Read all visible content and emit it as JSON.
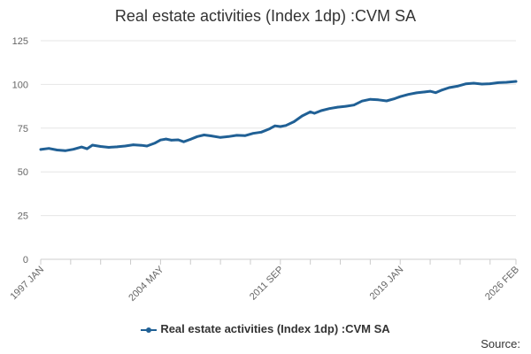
{
  "chart_data": {
    "type": "line",
    "title": "Real estate activities (Index 1dp) :CVM SA",
    "xlabel": "",
    "ylabel": "",
    "ylim": [
      0,
      125
    ],
    "yticks": [
      0,
      25,
      50,
      75,
      100,
      125
    ],
    "x_range": [
      "1997-01",
      "2026-02"
    ],
    "xtick_labels": [
      {
        "label": "1997 JAN",
        "date": "1997-01"
      },
      {
        "label": "2004 MAY",
        "date": "2004-05"
      },
      {
        "label": "2011 SEP",
        "date": "2011-09"
      },
      {
        "label": "2019 JAN",
        "date": "2019-01"
      },
      {
        "label": "2026 FEB",
        "date": "2026-02"
      }
    ],
    "minor_tick_dates": [
      "1997-01",
      "1998-11",
      "2000-09",
      "2002-07",
      "2004-05",
      "2006-03",
      "2008-01",
      "2009-11",
      "2011-09",
      "2013-07",
      "2015-05",
      "2017-03",
      "2019-01",
      "2020-11",
      "2022-09",
      "2024-07",
      "2026-02"
    ],
    "grid": true,
    "legend_position": "bottom",
    "color": "#206095",
    "series": [
      {
        "name": "Real estate activities (Index 1dp) :CVM SA",
        "points": [
          [
            "1997-01",
            62.8
          ],
          [
            "1997-07",
            63.4
          ],
          [
            "1998-01",
            62.5
          ],
          [
            "1998-07",
            62.1
          ],
          [
            "1999-01",
            62.9
          ],
          [
            "1999-07",
            64.2
          ],
          [
            "1999-11",
            63.2
          ],
          [
            "2000-03",
            65.3
          ],
          [
            "2000-09",
            64.5
          ],
          [
            "2001-03",
            64.0
          ],
          [
            "2001-09",
            64.3
          ],
          [
            "2002-03",
            64.8
          ],
          [
            "2002-09",
            65.5
          ],
          [
            "2003-03",
            65.2
          ],
          [
            "2003-07",
            64.8
          ],
          [
            "2004-01",
            66.5
          ],
          [
            "2004-05",
            68.2
          ],
          [
            "2004-09",
            68.8
          ],
          [
            "2005-01",
            68.1
          ],
          [
            "2005-06",
            68.3
          ],
          [
            "2005-10",
            67.2
          ],
          [
            "2006-03",
            68.6
          ],
          [
            "2006-08",
            70.2
          ],
          [
            "2007-01",
            71.1
          ],
          [
            "2007-06",
            70.6
          ],
          [
            "2008-01",
            69.7
          ],
          [
            "2008-07",
            70.2
          ],
          [
            "2009-01",
            70.9
          ],
          [
            "2009-07",
            70.7
          ],
          [
            "2010-01",
            72.0
          ],
          [
            "2010-07",
            72.7
          ],
          [
            "2011-01",
            74.6
          ],
          [
            "2011-05",
            76.3
          ],
          [
            "2011-09",
            75.9
          ],
          [
            "2012-01",
            76.5
          ],
          [
            "2012-07",
            78.7
          ],
          [
            "2013-01",
            82.0
          ],
          [
            "2013-07",
            84.3
          ],
          [
            "2013-10",
            83.5
          ],
          [
            "2014-03",
            85.0
          ],
          [
            "2014-09",
            86.2
          ],
          [
            "2015-03",
            87.0
          ],
          [
            "2015-09",
            87.5
          ],
          [
            "2016-03",
            88.2
          ],
          [
            "2016-09",
            90.5
          ],
          [
            "2017-03",
            91.5
          ],
          [
            "2017-09",
            91.2
          ],
          [
            "2018-03",
            90.6
          ],
          [
            "2018-09",
            91.9
          ],
          [
            "2019-01",
            93.0
          ],
          [
            "2019-07",
            94.3
          ],
          [
            "2020-01",
            95.2
          ],
          [
            "2020-07",
            95.7
          ],
          [
            "2020-11",
            96.1
          ],
          [
            "2021-03",
            95.3
          ],
          [
            "2021-07",
            96.6
          ],
          [
            "2022-01",
            98.2
          ],
          [
            "2022-07",
            99.0
          ],
          [
            "2023-01",
            100.3
          ],
          [
            "2023-07",
            100.7
          ],
          [
            "2024-01",
            100.2
          ],
          [
            "2024-07",
            100.4
          ],
          [
            "2025-01",
            101.0
          ],
          [
            "2025-07",
            101.2
          ],
          [
            "2026-02",
            101.7
          ]
        ]
      }
    ]
  },
  "legend": {
    "label": "Real estate activities (Index 1dp) :CVM SA"
  },
  "source": {
    "label": "Source:"
  }
}
